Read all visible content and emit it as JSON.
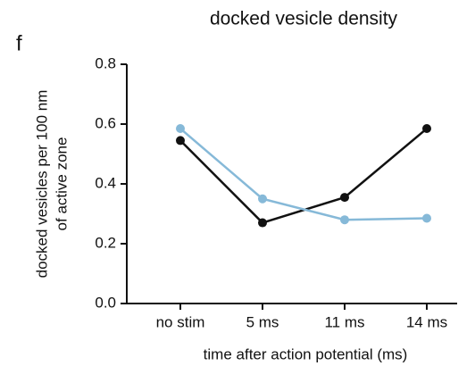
{
  "chart_data": {
    "type": "line",
    "panel_label": "f",
    "title": "docked vesicle density",
    "xlabel": "time after action potential (ms)",
    "ylabel": [
      "docked vesicles per 100 nm",
      "of active zone"
    ],
    "categories": [
      "no stim",
      "5 ms",
      "11 ms",
      "14 ms"
    ],
    "series": [
      {
        "color": "#111111",
        "values": [
          0.545,
          0.27,
          0.355,
          0.585
        ]
      },
      {
        "color": "#86b9d8",
        "values": [
          0.585,
          0.35,
          0.28,
          0.285
        ]
      }
    ],
    "ylim": [
      0,
      0.8
    ],
    "yticks": [
      {
        "value": 0,
        "label": "0.0"
      },
      0.2,
      0.4,
      0.6,
      0.8
    ]
  }
}
